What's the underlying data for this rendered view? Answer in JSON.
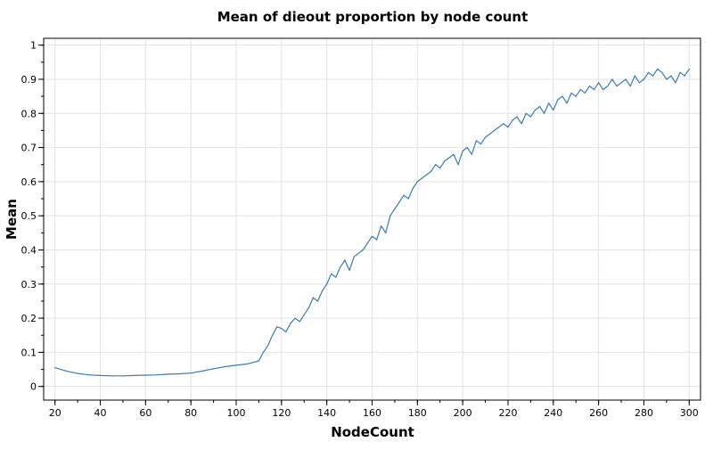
{
  "chart_data": {
    "type": "line",
    "title": "Mean of dieout proportion by node count",
    "xlabel": "NodeCount",
    "ylabel": "Mean",
    "xlim": [
      15,
      305
    ],
    "ylim": [
      -0.04,
      1.02
    ],
    "x_ticks": [
      20,
      40,
      60,
      80,
      100,
      120,
      140,
      160,
      180,
      200,
      220,
      240,
      260,
      280,
      300
    ],
    "y_ticks": [
      0,
      0.1,
      0.2,
      0.3,
      0.4,
      0.5,
      0.6,
      0.7,
      0.8,
      0.9,
      1
    ],
    "x_tick_labels": [
      "20",
      "40",
      "60",
      "80",
      "100",
      "120",
      "140",
      "160",
      "180",
      "200",
      "220",
      "240",
      "260",
      "280",
      "300"
    ],
    "y_tick_labels": [
      "0",
      "0.1",
      "0.2",
      "0.3",
      "0.4",
      "0.5",
      "0.6",
      "0.7",
      "0.8",
      "0.9",
      "1"
    ],
    "grid": true,
    "line_color": "#3c7bab",
    "series": [
      {
        "x": [
          20,
          25,
          30,
          35,
          40,
          45,
          50,
          55,
          60,
          65,
          70,
          75,
          80,
          85,
          90,
          95,
          100,
          105,
          110,
          112,
          114,
          116,
          118,
          120,
          122,
          124,
          126,
          128,
          130,
          132,
          134,
          136,
          138,
          140,
          142,
          144,
          146,
          148,
          150,
          152,
          154,
          156,
          158,
          160,
          162,
          164,
          166,
          168,
          170,
          172,
          174,
          176,
          178,
          180,
          182,
          184,
          186,
          188,
          190,
          192,
          194,
          196,
          198,
          200,
          202,
          204,
          206,
          208,
          210,
          212,
          214,
          216,
          218,
          220,
          222,
          224,
          226,
          228,
          230,
          232,
          234,
          236,
          238,
          240,
          242,
          244,
          246,
          248,
          250,
          252,
          254,
          256,
          258,
          260,
          262,
          264,
          266,
          268,
          270,
          272,
          274,
          276,
          278,
          280,
          282,
          284,
          286,
          288,
          290,
          292,
          294,
          296,
          298,
          300
        ],
        "values": [
          0.055,
          0.045,
          0.038,
          0.034,
          0.032,
          0.031,
          0.031,
          0.032,
          0.033,
          0.034,
          0.036,
          0.037,
          0.039,
          0.045,
          0.052,
          0.058,
          0.062,
          0.066,
          0.075,
          0.1,
          0.12,
          0.15,
          0.175,
          0.17,
          0.16,
          0.185,
          0.2,
          0.19,
          0.21,
          0.23,
          0.26,
          0.25,
          0.28,
          0.3,
          0.33,
          0.32,
          0.35,
          0.37,
          0.34,
          0.38,
          0.39,
          0.4,
          0.42,
          0.44,
          0.43,
          0.47,
          0.45,
          0.5,
          0.52,
          0.54,
          0.56,
          0.55,
          0.58,
          0.6,
          0.61,
          0.62,
          0.63,
          0.65,
          0.64,
          0.66,
          0.67,
          0.68,
          0.65,
          0.69,
          0.7,
          0.68,
          0.72,
          0.71,
          0.73,
          0.74,
          0.75,
          0.76,
          0.77,
          0.76,
          0.78,
          0.79,
          0.77,
          0.8,
          0.79,
          0.81,
          0.82,
          0.8,
          0.83,
          0.81,
          0.84,
          0.85,
          0.83,
          0.86,
          0.85,
          0.87,
          0.86,
          0.88,
          0.87,
          0.89,
          0.87,
          0.88,
          0.9,
          0.88,
          0.89,
          0.9,
          0.88,
          0.91,
          0.89,
          0.9,
          0.92,
          0.91,
          0.93,
          0.92,
          0.9,
          0.91,
          0.89,
          0.92,
          0.91,
          0.93
        ]
      }
    ]
  }
}
